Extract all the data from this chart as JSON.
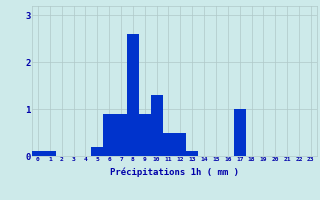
{
  "hours": [
    0,
    1,
    2,
    3,
    4,
    5,
    6,
    7,
    8,
    9,
    10,
    11,
    12,
    13,
    14,
    15,
    16,
    17,
    18,
    19,
    20,
    21,
    22,
    23
  ],
  "values": [
    0.1,
    0.1,
    0,
    0,
    0,
    0.2,
    0.9,
    0.9,
    2.6,
    0.9,
    1.3,
    0.5,
    0.5,
    0.1,
    0,
    0,
    0,
    1.0,
    0,
    0,
    0,
    0,
    0,
    0
  ],
  "bar_color": "#0033cc",
  "background_color": "#cdeaea",
  "grid_color": "#b0c8c8",
  "xlabel": "Précipitations 1h ( mm )",
  "xlabel_color": "#0000aa",
  "tick_color": "#0000aa",
  "ylim": [
    0,
    3.2
  ],
  "yticks": [
    0,
    1,
    2,
    3
  ],
  "figsize": [
    3.2,
    2.0
  ],
  "dpi": 100
}
